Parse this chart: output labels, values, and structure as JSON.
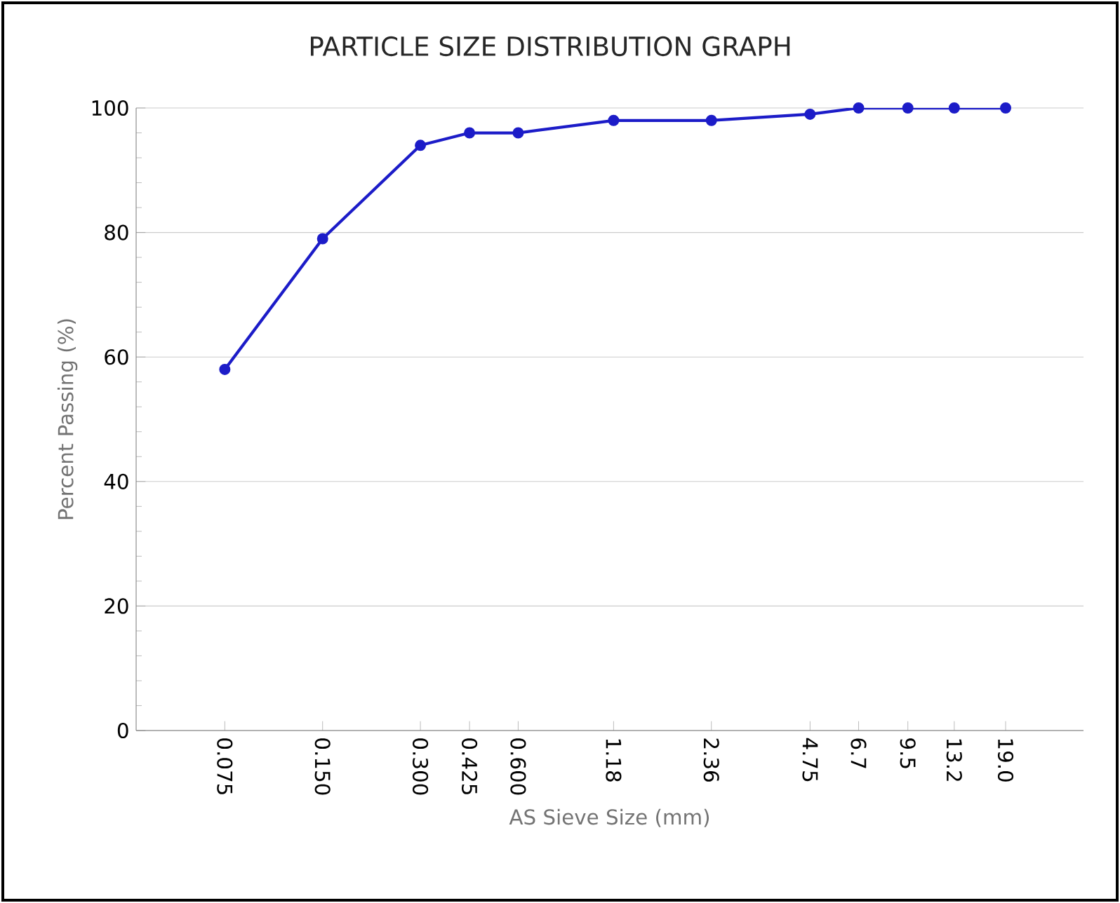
{
  "chart_data": {
    "type": "line",
    "title": "PARTICLE SIZE DISTRIBUTION GRAPH",
    "xlabel": "AS Sieve Size (mm)",
    "ylabel": "Percent Passing (%)",
    "log": "x",
    "xlim": [
      0.04,
      33
    ],
    "ylim": [
      0,
      100
    ],
    "xticks": [
      {
        "value": 0.075,
        "label": "0.075"
      },
      {
        "value": 0.15,
        "label": "0.150"
      },
      {
        "value": 0.3,
        "label": "0.300"
      },
      {
        "value": 0.425,
        "label": "0.425"
      },
      {
        "value": 0.6,
        "label": "0.600"
      },
      {
        "value": 1.18,
        "label": "1.18"
      },
      {
        "value": 2.36,
        "label": "2.36"
      },
      {
        "value": 4.75,
        "label": "4.75"
      },
      {
        "value": 6.7,
        "label": "6.7"
      },
      {
        "value": 9.5,
        "label": "9.5"
      },
      {
        "value": 13.2,
        "label": "13.2"
      },
      {
        "value": 19.0,
        "label": "19.0"
      }
    ],
    "yticks": [
      0,
      20,
      40,
      60,
      80,
      100
    ],
    "grid": "y",
    "marker": "circle",
    "line_style": "solid",
    "x": [
      0.075,
      0.15,
      0.3,
      0.425,
      0.6,
      1.18,
      2.36,
      4.75,
      6.7,
      9.5,
      13.2,
      19.0
    ],
    "series": [
      {
        "color": "#1c1cc8",
        "values": [
          58,
          79,
          94,
          96,
          96,
          98,
          98,
          99,
          100,
          100,
          100,
          100
        ]
      }
    ]
  }
}
